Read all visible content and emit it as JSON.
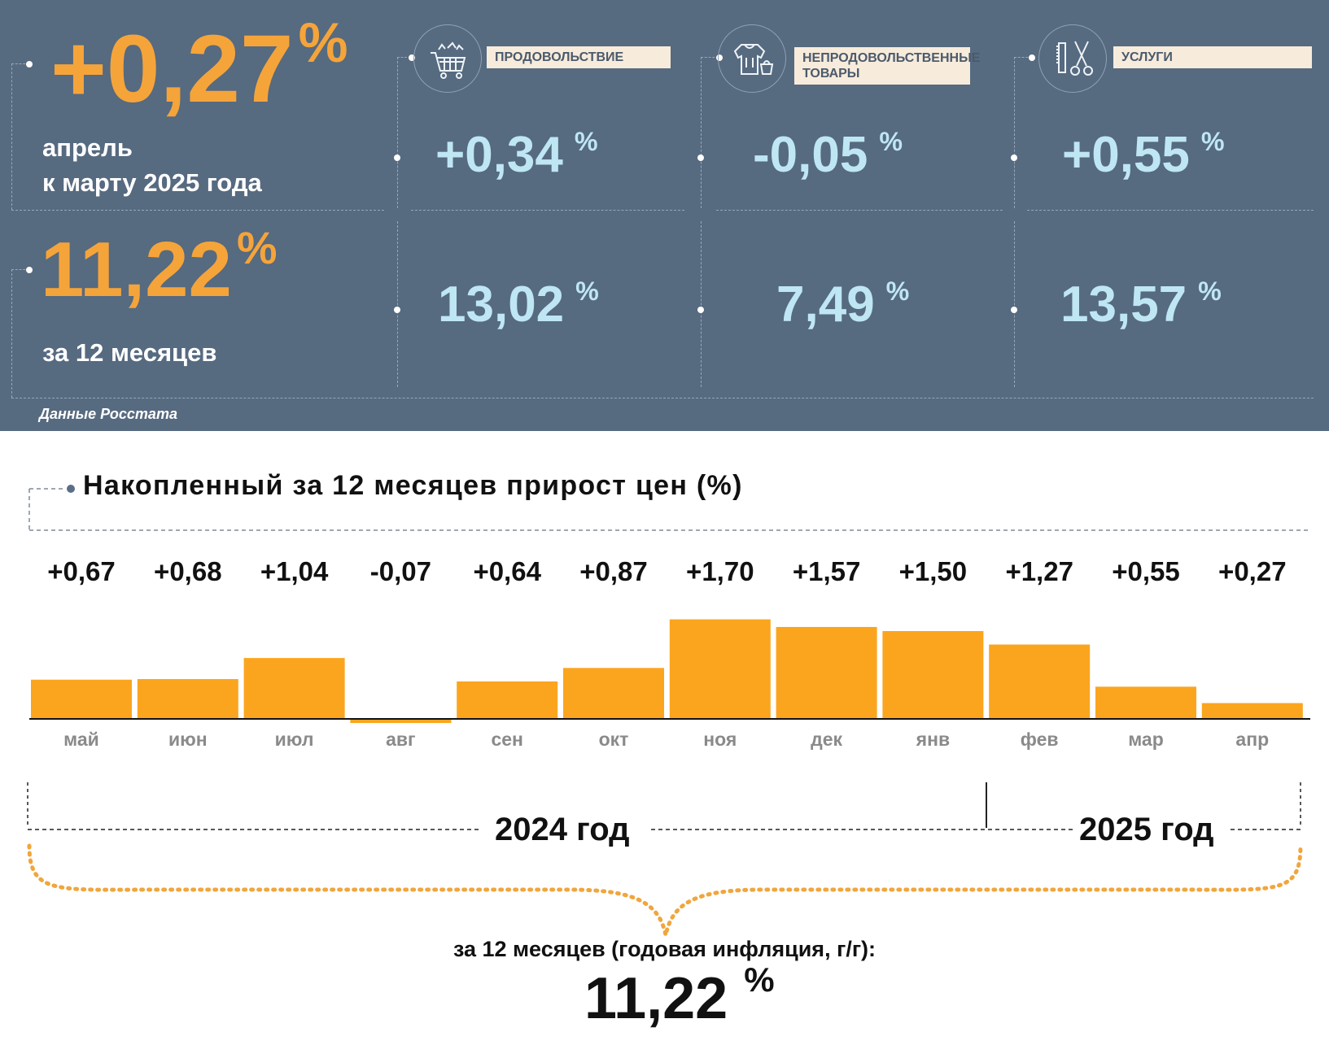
{
  "summary": {
    "monthly_value": "+0,27",
    "monthly_unit": "%",
    "monthly_caption_line1": "апрель",
    "monthly_caption_line2": "к марту 2025 года",
    "annual_value": "11,22",
    "annual_unit": "%",
    "annual_caption": "за 12 месяцев",
    "source": "Данные Росстата"
  },
  "categories": [
    {
      "label": "ПРОДОВОЛЬСТВИЕ",
      "icon": "shopping-cart-icon",
      "monthly": "+0,34",
      "annual": "13,02",
      "unit": "%"
    },
    {
      "label": "НЕПРОДОВОЛЬСТВЕННЫЕ ТОВАРЫ",
      "icon": "hoodie-handbag-icon",
      "monthly": "-0,05",
      "annual": "7,49",
      "unit": "%"
    },
    {
      "label": "УСЛУГИ",
      "icon": "comb-scissors-icon",
      "monthly": "+0,55",
      "annual": "13,57",
      "unit": "%"
    }
  ],
  "chart_data": {
    "type": "bar",
    "title": "Накопленный за 12 месяцев прирост цен (%)",
    "categories": [
      "май",
      "июн",
      "июл",
      "авг",
      "сен",
      "окт",
      "ноя",
      "дек",
      "янв",
      "фев",
      "мар",
      "апр"
    ],
    "values": [
      0.67,
      0.68,
      1.04,
      -0.07,
      0.64,
      0.87,
      1.7,
      1.57,
      1.5,
      1.27,
      0.55,
      0.27
    ],
    "value_labels": [
      "+0,67",
      "+0,68",
      "+1,04",
      "-0,07",
      "+0,64",
      "+0,87",
      "+1,70",
      "+1,57",
      "+1,50",
      "+1,27",
      "+0,55",
      "+0,27"
    ],
    "bar_color": "#fba51e",
    "years": [
      "2024 год",
      "2025 год"
    ],
    "annual_caption": "за 12 месяцев (годовая инфляция, г/г):",
    "annual_value": "11,22",
    "annual_unit": "%",
    "xlabel": "",
    "ylabel": ""
  },
  "colors": {
    "panel_bg": "#566a80",
    "accent_orange": "#f5a43a",
    "accent_blue": "#bfe6f3",
    "label_bg": "#f7ebdb"
  }
}
